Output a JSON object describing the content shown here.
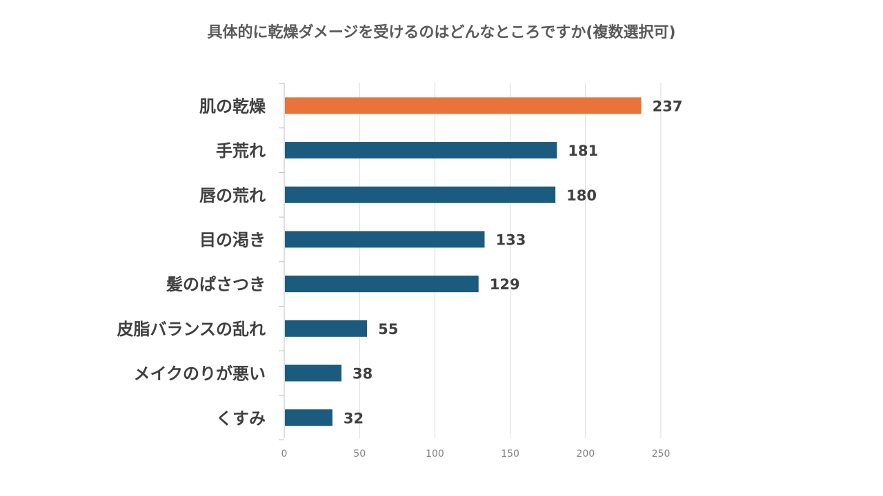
{
  "chart_data": {
    "type": "bar",
    "orientation": "horizontal",
    "title": "具体的に乾燥ダメージを受けるのはどんなところですか(複数選択可)",
    "categories": [
      "肌の乾燥",
      "手荒れ",
      "唇の荒れ",
      "目の渇き",
      "髪のぱさつき",
      "皮脂バランスの乱れ",
      "メイクのりが悪い",
      "くすみ"
    ],
    "values": [
      237,
      181,
      180,
      133,
      129,
      55,
      38,
      32
    ],
    "highlight_index": 0,
    "colors": {
      "highlight": "#E8743B",
      "default": "#1B5C7E",
      "grid": "#D9D9D9",
      "axis": "#BFBFBF"
    },
    "xlim": [
      0,
      250
    ],
    "xticks": [
      0,
      50,
      100,
      150,
      200,
      250
    ],
    "xlabel": "",
    "ylabel": "",
    "grid": true,
    "legend": "none"
  }
}
